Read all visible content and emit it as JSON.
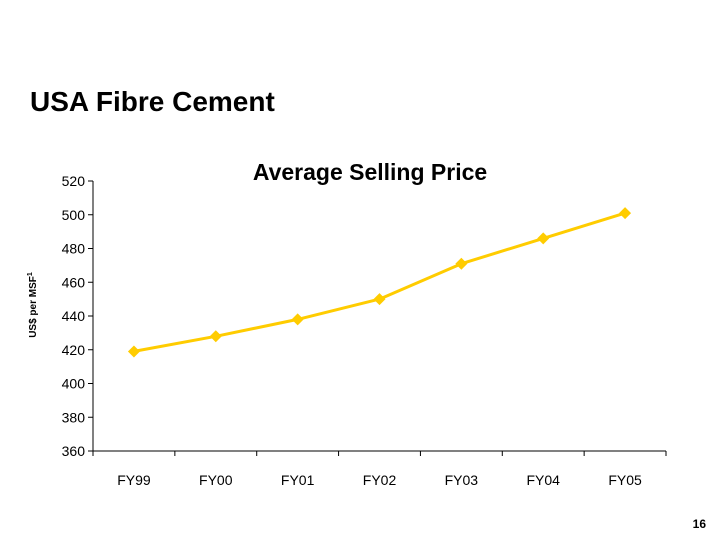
{
  "slide": {
    "title": "USA Fibre Cement",
    "page_number": "16"
  },
  "chart_data": {
    "type": "line",
    "title": "Average Selling Price",
    "xlabel": "",
    "ylabel": "US$ per MSF",
    "ylabel_superscript": "1",
    "categories": [
      "FY99",
      "FY00",
      "FY01",
      "FY02",
      "FY03",
      "FY04",
      "FY05"
    ],
    "series": [
      {
        "values": [
          419,
          428,
          438,
          450,
          471,
          486,
          501
        ],
        "color": "#FFCC00",
        "marker": "diamond"
      }
    ],
    "ylim": [
      360,
      520
    ],
    "yticks": [
      360,
      380,
      400,
      420,
      440,
      460,
      480,
      500,
      520
    ],
    "grid": false,
    "legend": "none"
  }
}
